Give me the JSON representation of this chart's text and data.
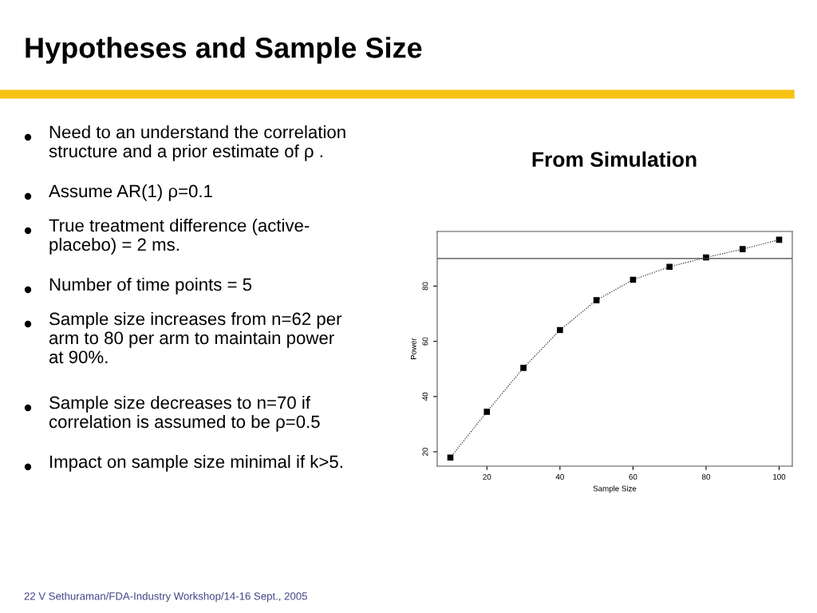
{
  "chart_data": {
    "type": "line",
    "title": "Hypotheses and Sample Size",
    "subtitle": "From Simulation",
    "xlabel": "Sample Size",
    "ylabel": "Power",
    "x": [
      10,
      20,
      30,
      40,
      50,
      60,
      70,
      80,
      90,
      100
    ],
    "series": [
      {
        "color": "#000000",
        "values": [
          17.9,
          34.5,
          50.4,
          64.1,
          74.9,
          82.3,
          87.0,
          90.4,
          93.4,
          96.8
        ]
      }
    ],
    "xlim": [
      6.4,
      103.6
    ],
    "xticks": [
      20,
      40,
      60,
      80,
      100
    ],
    "ylim": [
      14.8,
      99.8
    ],
    "yticks": [
      20,
      40,
      60,
      80
    ],
    "ref_lines": [
      {
        "axis": "y",
        "value": 90,
        "color": "#444444"
      }
    ],
    "marker": "square",
    "line_style": "dotted",
    "grid": false,
    "legend": false,
    "annotations": [
      "Need to an understand the correlation\nstructure and a prior estimate of ρ .",
      "Assume AR(1) ρ=0.1",
      "True treatment difference (active-\nplacebo) = 2 ms.",
      "Number of time points = 5",
      "Sample size increases from n=62 per\narm to 80 per arm to maintain power\nat 90%.",
      "Sample size decreases to n=70 if\ncorrelation is assumed to be ρ=0.5",
      "Impact on sample size minimal if k>5.",
      "22 V Sethuraman/FDA-Industry Workshop/14-16 Sept., 2005"
    ]
  }
}
